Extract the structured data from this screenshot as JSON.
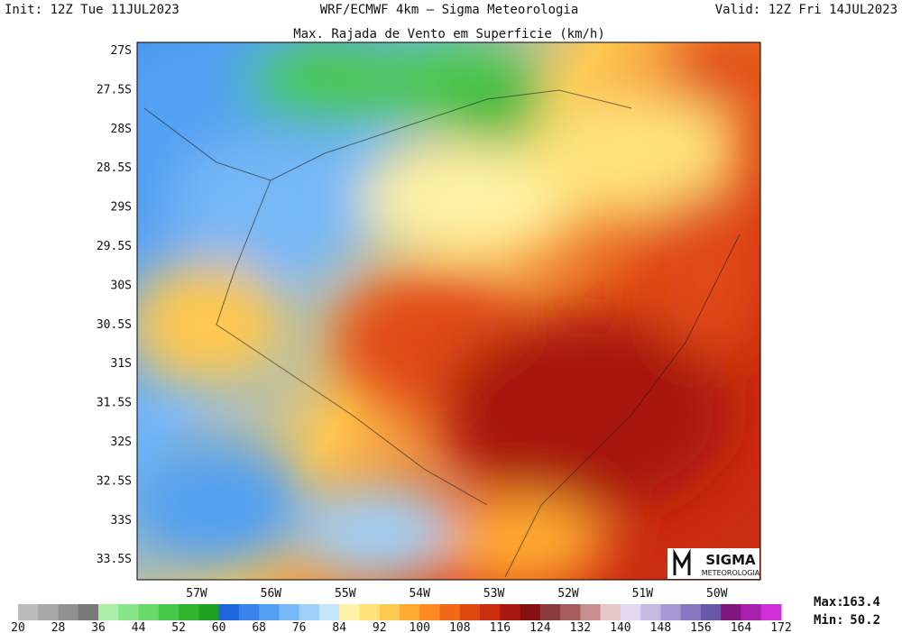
{
  "header": {
    "init": "Init: 12Z Tue 11JUL2023",
    "model": "WRF/ECMWF 4km — Sigma Meteorologia",
    "valid": "Valid: 12Z Fri 14JUL2023"
  },
  "title": "Max. Rajada de Vento em Superficie (km/h)",
  "lat_labels": [
    "27S",
    "27.5S",
    "28S",
    "28.5S",
    "29S",
    "29.5S",
    "30S",
    "30.5S",
    "31S",
    "31.5S",
    "32S",
    "32.5S",
    "33S",
    "33.5S"
  ],
  "lon_labels": [
    "57W",
    "56W",
    "55W",
    "54W",
    "53W",
    "52W",
    "51W",
    "50W"
  ],
  "colorbar": {
    "ticks": [
      20,
      28,
      36,
      44,
      52,
      60,
      68,
      76,
      84,
      92,
      100,
      108,
      116,
      124,
      132,
      140,
      148,
      156,
      164,
      172
    ],
    "colors": [
      "#bcbcbc",
      "#a8a8a8",
      "#909090",
      "#787878",
      "#a8f0a8",
      "#88e488",
      "#68d868",
      "#48c848",
      "#30b430",
      "#20a020",
      "#1e66dc",
      "#3882ec",
      "#52a0f2",
      "#76b8f6",
      "#9ed0fa",
      "#c6e6fc",
      "#fff2a6",
      "#ffe27a",
      "#ffc850",
      "#ffaa30",
      "#ff8a22",
      "#f26818",
      "#e04812",
      "#cc2c10",
      "#a81810",
      "#861010",
      "#8a3c3c",
      "#a85c5c",
      "#c88e8e",
      "#e8c8c4",
      "#e4d8f0",
      "#c8b8e4",
      "#a898d4",
      "#8878c4",
      "#6858a8",
      "#801880",
      "#a820b0",
      "#d030d8"
    ]
  },
  "stats": {
    "max_label": "Max:",
    "max": 163.4,
    "min_label": "Min:",
    "min": 50.2
  },
  "logo": {
    "name": "SIGMA",
    "sub": "METEOROLOGIA"
  }
}
